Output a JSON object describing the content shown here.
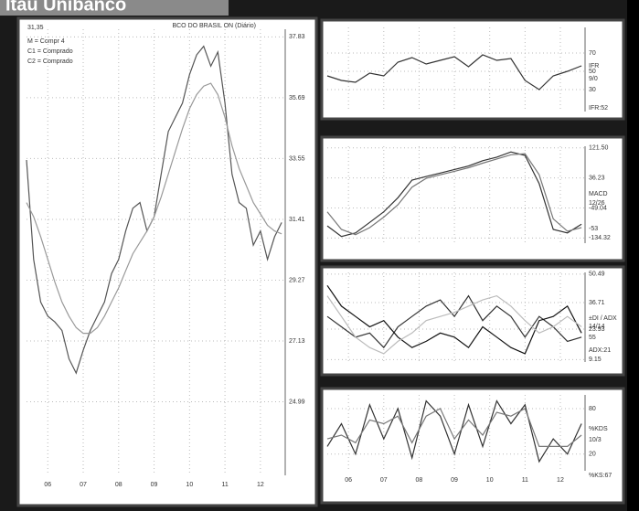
{
  "header": {
    "title": "Itaú Unibanco"
  },
  "chart_data": [
    {
      "type": "line",
      "title": "BCO DO BRASIL ON (Diário)",
      "annotations": [
        "31,35",
        "M = Compr 4",
        "C1 = Comprado",
        "C2 = Comprado"
      ],
      "x": [
        5.4,
        5.6,
        5.8,
        6.0,
        6.2,
        6.4,
        6.6,
        6.8,
        7.0,
        7.2,
        7.4,
        7.6,
        7.8,
        8.0,
        8.2,
        8.4,
        8.6,
        8.8,
        9.0,
        9.2,
        9.4,
        9.6,
        9.8,
        10.0,
        10.2,
        10.4,
        10.6,
        10.8,
        11.0,
        11.2,
        11.4,
        11.6,
        11.8,
        12.0,
        12.2,
        12.4,
        12.6
      ],
      "series": [
        {
          "color": "#555555",
          "values": [
            33.5,
            30,
            28.5,
            28,
            27.8,
            27.5,
            26.5,
            26,
            26.8,
            27.5,
            28,
            28.5,
            29.5,
            30,
            31,
            31.8,
            32,
            31,
            31.5,
            33,
            34.5,
            35,
            35.5,
            36.5,
            37.2,
            37.5,
            36.8,
            37.3,
            35.5,
            33,
            32,
            31.8,
            30.5,
            31,
            30,
            30.8,
            31.3
          ]
        },
        {
          "color": "#999999",
          "values": [
            32,
            31.5,
            30.8,
            30,
            29.2,
            28.5,
            28,
            27.6,
            27.4,
            27.4,
            27.6,
            28,
            28.5,
            29,
            29.6,
            30.2,
            30.6,
            31,
            31.5,
            32.2,
            33,
            33.8,
            34.6,
            35.3,
            35.8,
            36.1,
            36.2,
            35.8,
            35,
            34,
            33.2,
            32.6,
            32,
            31.6,
            31.2,
            31,
            30.9
          ]
        }
      ],
      "xlim": [
        5.4,
        12.7
      ],
      "xticks": [
        {
          "value": 6,
          "label": "06"
        },
        {
          "value": 7,
          "label": "07"
        },
        {
          "value": 8,
          "label": "08"
        },
        {
          "value": 9,
          "label": "09"
        },
        {
          "value": 10,
          "label": "10"
        },
        {
          "value": 11,
          "label": "11"
        },
        {
          "value": 12,
          "label": "12"
        }
      ],
      "ylim": [
        22.4,
        38.1
      ],
      "yticks": [
        37.83,
        35.69,
        33.55,
        31.41,
        29.27,
        27.13,
        24.99
      ],
      "grid": true
    },
    {
      "type": "line",
      "annotations": [
        "IFR",
        "9/0",
        "IFR:52"
      ],
      "x": [
        5.4,
        5.8,
        6.2,
        6.6,
        7.0,
        7.4,
        7.8,
        8.2,
        8.6,
        9.0,
        9.4,
        9.8,
        10.2,
        10.6,
        11.0,
        11.4,
        11.8,
        12.2,
        12.6
      ],
      "series": [
        {
          "color": "#333333",
          "values": [
            45,
            40,
            38,
            48,
            45,
            60,
            65,
            58,
            62,
            66,
            55,
            68,
            62,
            64,
            40,
            30,
            45,
            50,
            56
          ]
        }
      ],
      "xlim": [
        5.4,
        12.7
      ],
      "ylim": [
        6,
        98
      ],
      "yticks": [
        70,
        50,
        30
      ],
      "grid": true
    },
    {
      "type": "line",
      "annotations": [
        "MACD",
        "12/26",
        "-53"
      ],
      "x": [
        5.4,
        5.8,
        6.2,
        6.6,
        7.0,
        7.4,
        7.8,
        8.2,
        8.6,
        9.0,
        9.4,
        9.8,
        10.2,
        10.6,
        11.0,
        11.4,
        11.8,
        12.2,
        12.6
      ],
      "series": [
        {
          "color": "#333333",
          "values": [
            -100,
            -130,
            -120,
            -90,
            -60,
            -20,
            30,
            40,
            50,
            60,
            70,
            85,
            95,
            110,
            100,
            20,
            -110,
            -120,
            -95
          ]
        },
        {
          "color": "#777777",
          "values": [
            -60,
            -110,
            -125,
            -105,
            -75,
            -40,
            10,
            35,
            45,
            55,
            65,
            78,
            90,
            102,
            105,
            45,
            -80,
            -115,
            -105
          ]
        }
      ],
      "xlim": [
        5.4,
        12.7
      ],
      "ylim": [
        -149,
        126
      ],
      "yticks": [
        {
          "value": 121.5,
          "label": "121.50"
        },
        36.23,
        -49.04,
        -134.32
      ],
      "grid": true
    },
    {
      "type": "line",
      "annotations": [
        "±DI / ADX",
        "14/14",
        "55",
        "ADX:21"
      ],
      "x": [
        5.4,
        5.8,
        6.2,
        6.6,
        7.0,
        7.4,
        7.8,
        8.2,
        8.6,
        9.0,
        9.4,
        9.8,
        10.2,
        10.6,
        11.0,
        11.4,
        11.8,
        12.2,
        12.6
      ],
      "series": [
        {
          "color": "#333333",
          "values": [
            30,
            25,
            20,
            22,
            15,
            25,
            30,
            35,
            38,
            30,
            40,
            28,
            35,
            30,
            20,
            30,
            25,
            18,
            20
          ]
        },
        {
          "color": "#111111",
          "values": [
            45,
            35,
            30,
            25,
            28,
            20,
            15,
            18,
            22,
            20,
            15,
            25,
            20,
            15,
            12,
            28,
            30,
            35,
            22
          ]
        },
        {
          "color": "#bbbbbb",
          "values": [
            40,
            30,
            20,
            15,
            12,
            18,
            22,
            28,
            30,
            32,
            35,
            38,
            40,
            35,
            28,
            22,
            25,
            30,
            25
          ]
        }
      ],
      "xlim": [
        5.4,
        12.7
      ],
      "ylim": [
        8,
        51.3
      ],
      "yticks": [
        50.49,
        36.71,
        23.93,
        9.15
      ],
      "grid": true
    },
    {
      "type": "line",
      "annotations": [
        "%KDS",
        "10/3",
        "%KS:67"
      ],
      "x": [
        5.4,
        5.8,
        6.2,
        6.6,
        7.0,
        7.4,
        7.8,
        8.2,
        8.6,
        9.0,
        9.4,
        9.8,
        10.2,
        10.6,
        11.0,
        11.4,
        11.8,
        12.2,
        12.6
      ],
      "series": [
        {
          "color": "#333333",
          "values": [
            30,
            60,
            20,
            85,
            40,
            80,
            15,
            90,
            70,
            20,
            85,
            30,
            90,
            60,
            85,
            10,
            40,
            20,
            60
          ]
        },
        {
          "color": "#777777",
          "values": [
            40,
            45,
            35,
            65,
            60,
            70,
            35,
            70,
            80,
            40,
            65,
            45,
            75,
            70,
            80,
            30,
            30,
            30,
            45
          ]
        }
      ],
      "xlim": [
        5.4,
        12.7
      ],
      "xticks": [
        {
          "value": 6,
          "label": "06"
        },
        {
          "value": 7,
          "label": "07"
        },
        {
          "value": 8,
          "label": "08"
        },
        {
          "value": 9,
          "label": "09"
        },
        {
          "value": 10,
          "label": "10"
        },
        {
          "value": 11,
          "label": "11"
        },
        {
          "value": 12,
          "label": "12"
        }
      ],
      "ylim": [
        -2,
        98
      ],
      "yticks": [
        80,
        20
      ],
      "grid": true
    }
  ]
}
